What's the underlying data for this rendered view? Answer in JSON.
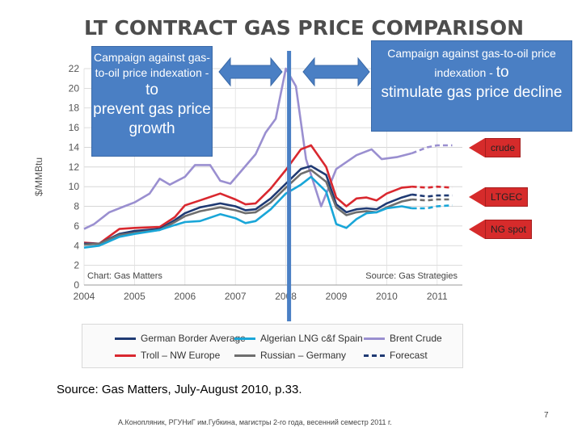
{
  "slide": {
    "title": "LT CONTRACT GAS PRICE COMPARISON",
    "source": "Source: Gas Matters, July-August 2010, p.33.",
    "footer": "А.Конопляник, РГУНиГ им.Губкина, магистры 2-го года, весенний семестр 2011 г.",
    "page_number": "7"
  },
  "callouts": {
    "left": {
      "small": "Campaign against gas-to-oil price indexation - ",
      "big_inline": "to",
      "big": "prevent gas price growth"
    },
    "right": {
      "small": "Campaign against gas-to-oil price indexation - ",
      "big_inline": "to",
      "big": "stimulate gas price decline"
    },
    "tags": [
      "crude",
      "LTGEC",
      "NG spot"
    ]
  },
  "chart_data": {
    "type": "line",
    "ylabel": "$/MMBtu",
    "xlabel": "",
    "ylim": [
      0,
      22
    ],
    "yticks": [
      0,
      2,
      4,
      6,
      8,
      10,
      12,
      14,
      16,
      18,
      20,
      22
    ],
    "xlim": [
      2004,
      2011.5
    ],
    "xticks": [
      2004,
      2005,
      2006,
      2007,
      2008,
      2009,
      2010,
      2011
    ],
    "chart_note": "Chart: Gas Matters",
    "source_note": "Source: Gas Strategies",
    "series": [
      {
        "name": "Brent Crude",
        "color": "#9a8fd0",
        "dash": false,
        "points": [
          [
            2004,
            5.7
          ],
          [
            2004.2,
            6.2
          ],
          [
            2004.5,
            7.4
          ],
          [
            2004.8,
            8.0
          ],
          [
            2005.0,
            8.4
          ],
          [
            2005.3,
            9.3
          ],
          [
            2005.5,
            10.8
          ],
          [
            2005.7,
            10.2
          ],
          [
            2006.0,
            11.0
          ],
          [
            2006.2,
            12.2
          ],
          [
            2006.5,
            12.2
          ],
          [
            2006.7,
            10.6
          ],
          [
            2006.9,
            10.3
          ],
          [
            2007.2,
            12.1
          ],
          [
            2007.4,
            13.3
          ],
          [
            2007.6,
            15.5
          ],
          [
            2007.8,
            16.9
          ],
          [
            2008.0,
            22.0
          ],
          [
            2008.2,
            20.2
          ],
          [
            2008.4,
            12.8
          ],
          [
            2008.7,
            8.0
          ],
          [
            2009.0,
            11.8
          ],
          [
            2009.4,
            13.2
          ],
          [
            2009.7,
            13.8
          ],
          [
            2009.9,
            12.8
          ],
          [
            2010.2,
            13.0
          ],
          [
            2010.5,
            13.4
          ]
        ]
      },
      {
        "name": "Brent Crude forecast",
        "color": "#9a8fd0",
        "dash": true,
        "points": [
          [
            2010.5,
            13.4
          ],
          [
            2010.8,
            14.0
          ],
          [
            2011.0,
            14.2
          ],
          [
            2011.3,
            14.2
          ]
        ]
      },
      {
        "name": "Troll – NW Europe",
        "color": "#d9282f",
        "dash": false,
        "points": [
          [
            2004,
            4.3
          ],
          [
            2004.3,
            4.2
          ],
          [
            2004.7,
            5.7
          ],
          [
            2005.0,
            5.8
          ],
          [
            2005.5,
            5.9
          ],
          [
            2005.8,
            6.9
          ],
          [
            2006.0,
            8.1
          ],
          [
            2006.3,
            8.6
          ],
          [
            2006.7,
            9.3
          ],
          [
            2007.0,
            8.7
          ],
          [
            2007.2,
            8.2
          ],
          [
            2007.4,
            8.3
          ],
          [
            2007.7,
            9.8
          ],
          [
            2008.0,
            11.7
          ],
          [
            2008.3,
            13.8
          ],
          [
            2008.5,
            14.2
          ],
          [
            2008.8,
            12.0
          ],
          [
            2009.0,
            8.9
          ],
          [
            2009.2,
            8.0
          ],
          [
            2009.4,
            8.8
          ],
          [
            2009.6,
            8.9
          ],
          [
            2009.8,
            8.6
          ],
          [
            2010.0,
            9.3
          ],
          [
            2010.3,
            9.9
          ],
          [
            2010.5,
            10.0
          ]
        ]
      },
      {
        "name": "Troll forecast",
        "color": "#d9282f",
        "dash": true,
        "points": [
          [
            2010.5,
            10.0
          ],
          [
            2010.8,
            9.9
          ],
          [
            2011.0,
            10.0
          ],
          [
            2011.3,
            9.9
          ]
        ]
      },
      {
        "name": "German Border Average",
        "color": "#1f3a73",
        "dash": false,
        "points": [
          [
            2004,
            4.2
          ],
          [
            2004.3,
            4.2
          ],
          [
            2004.7,
            5.2
          ],
          [
            2005.0,
            5.5
          ],
          [
            2005.5,
            5.7
          ],
          [
            2005.8,
            6.6
          ],
          [
            2006.0,
            7.3
          ],
          [
            2006.3,
            7.9
          ],
          [
            2006.7,
            8.3
          ],
          [
            2007.0,
            8.0
          ],
          [
            2007.2,
            7.6
          ],
          [
            2007.4,
            7.7
          ],
          [
            2007.7,
            8.8
          ],
          [
            2008.0,
            10.3
          ],
          [
            2008.3,
            11.8
          ],
          [
            2008.5,
            12.1
          ],
          [
            2008.8,
            11.2
          ],
          [
            2009.0,
            8.2
          ],
          [
            2009.2,
            7.4
          ],
          [
            2009.4,
            7.7
          ],
          [
            2009.6,
            7.8
          ],
          [
            2009.8,
            7.7
          ],
          [
            2010.0,
            8.3
          ],
          [
            2010.3,
            8.9
          ],
          [
            2010.5,
            9.2
          ]
        ]
      },
      {
        "name": "German Border forecast",
        "color": "#1f3a73",
        "dash": true,
        "points": [
          [
            2010.5,
            9.2
          ],
          [
            2010.8,
            9.0
          ],
          [
            2011.0,
            9.1
          ],
          [
            2011.3,
            9.1
          ]
        ]
      },
      {
        "name": "Russian – Germany",
        "color": "#6e6e6e",
        "dash": false,
        "points": [
          [
            2004,
            4.1
          ],
          [
            2004.3,
            4.2
          ],
          [
            2004.7,
            5.1
          ],
          [
            2005.0,
            5.3
          ],
          [
            2005.5,
            5.6
          ],
          [
            2005.8,
            6.4
          ],
          [
            2006.0,
            7.0
          ],
          [
            2006.3,
            7.5
          ],
          [
            2006.7,
            7.9
          ],
          [
            2007.0,
            7.6
          ],
          [
            2007.2,
            7.3
          ],
          [
            2007.4,
            7.4
          ],
          [
            2007.7,
            8.4
          ],
          [
            2008.0,
            9.9
          ],
          [
            2008.3,
            11.3
          ],
          [
            2008.5,
            11.7
          ],
          [
            2008.8,
            10.5
          ],
          [
            2009.0,
            7.9
          ],
          [
            2009.2,
            7.1
          ],
          [
            2009.4,
            7.4
          ],
          [
            2009.6,
            7.5
          ],
          [
            2009.8,
            7.4
          ],
          [
            2010.0,
            7.9
          ],
          [
            2010.3,
            8.5
          ],
          [
            2010.5,
            8.7
          ]
        ]
      },
      {
        "name": "Russian forecast",
        "color": "#6e6e6e",
        "dash": true,
        "points": [
          [
            2010.5,
            8.7
          ],
          [
            2010.8,
            8.6
          ],
          [
            2011.0,
            8.7
          ],
          [
            2011.3,
            8.7
          ]
        ]
      },
      {
        "name": "Algerian LNG c&f Spain",
        "color": "#19a6d8",
        "dash": false,
        "points": [
          [
            2004,
            3.8
          ],
          [
            2004.3,
            4.0
          ],
          [
            2004.7,
            4.9
          ],
          [
            2005.0,
            5.2
          ],
          [
            2005.5,
            5.6
          ],
          [
            2005.8,
            6.1
          ],
          [
            2006.0,
            6.4
          ],
          [
            2006.3,
            6.5
          ],
          [
            2006.7,
            7.2
          ],
          [
            2007.0,
            6.8
          ],
          [
            2007.2,
            6.3
          ],
          [
            2007.4,
            6.5
          ],
          [
            2007.7,
            7.7
          ],
          [
            2008.0,
            9.3
          ],
          [
            2008.3,
            10.2
          ],
          [
            2008.5,
            11.0
          ],
          [
            2008.8,
            9.5
          ],
          [
            2009.0,
            6.2
          ],
          [
            2009.2,
            5.8
          ],
          [
            2009.4,
            6.7
          ],
          [
            2009.6,
            7.3
          ],
          [
            2009.8,
            7.4
          ],
          [
            2010.0,
            7.8
          ],
          [
            2010.3,
            8.0
          ],
          [
            2010.5,
            7.8
          ]
        ]
      },
      {
        "name": "Algerian forecast",
        "color": "#19a6d8",
        "dash": true,
        "points": [
          [
            2010.5,
            7.8
          ],
          [
            2010.8,
            7.8
          ],
          [
            2011.0,
            8.0
          ],
          [
            2011.3,
            8.1
          ]
        ]
      }
    ],
    "legend": [
      {
        "label": "German Border Average",
        "color": "#1f3a73",
        "dash": false
      },
      {
        "label": "Algerian LNG c&f Spain",
        "color": "#19a6d8",
        "dash": false
      },
      {
        "label": "Brent Crude",
        "color": "#9a8fd0",
        "dash": false
      },
      {
        "label": "Troll – NW Europe",
        "color": "#d9282f",
        "dash": false
      },
      {
        "label": "Russian – Germany",
        "color": "#6e6e6e",
        "dash": false
      },
      {
        "label": "Forecast",
        "color": "#1f3a73",
        "dash": true
      }
    ],
    "marker_year": 2008,
    "grid": true,
    "legend_position": "bottom"
  }
}
